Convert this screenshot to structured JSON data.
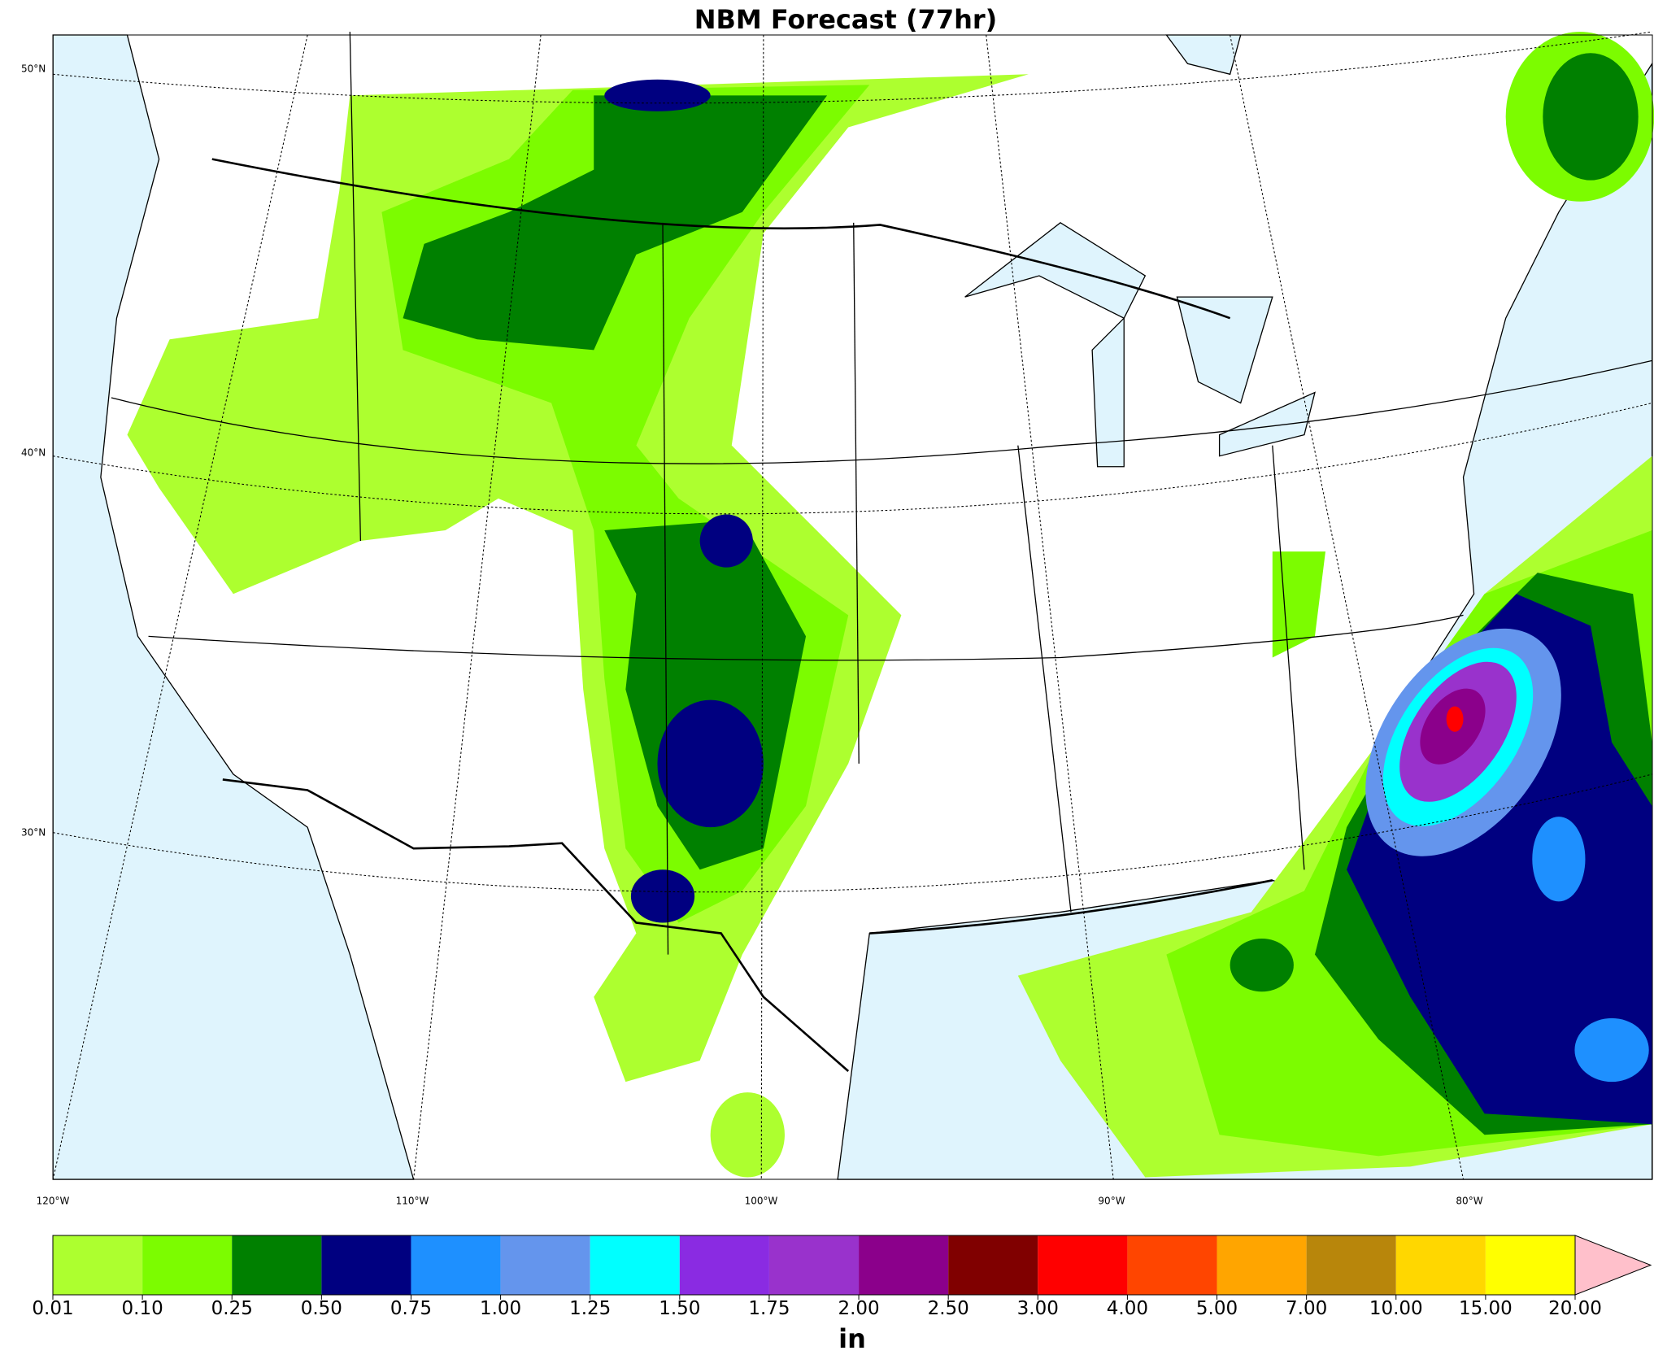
{
  "title": "NBM Forecast (77hr)",
  "lat_labels": [
    "50°N",
    "40°N",
    "30°N"
  ],
  "lon_labels": [
    "120°W",
    "110°W",
    "100°W",
    "90°W",
    "80°W"
  ],
  "colorbar": {
    "ticks": [
      "0.01",
      "0.10",
      "0.25",
      "0.50",
      "0.75",
      "1.00",
      "1.25",
      "1.50",
      "1.75",
      "2.00",
      "2.50",
      "3.00",
      "4.00",
      "5.00",
      "7.00",
      "10.00",
      "15.00",
      "20.00"
    ],
    "colors": [
      "#adff2f",
      "#7cfc00",
      "#008000",
      "#000080",
      "#1e90ff",
      "#6495ed",
      "#00ffff",
      "#8a2be2",
      "#9932cc",
      "#8b008b",
      "#800000",
      "#ff0000",
      "#ff4500",
      "#ffa500",
      "#b8860b",
      "#ffd700",
      "#ffff00",
      "#ffc0cb"
    ],
    "unit": "in"
  }
}
